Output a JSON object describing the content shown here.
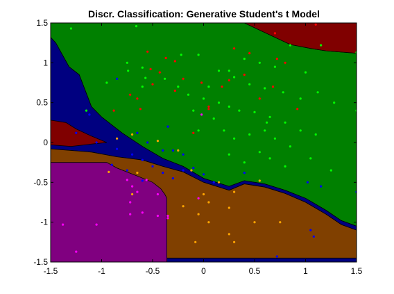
{
  "chart_data": {
    "type": "scatter",
    "title": "Discr. Classification: Generative Student's t Model",
    "xlabel": "",
    "ylabel": "",
    "xlim": [
      -1.5,
      1.5
    ],
    "ylim": [
      -1.5,
      1.5
    ],
    "x_ticks": [
      "-1.5",
      "-1",
      "-0.5",
      "0",
      "0.5",
      "1",
      "1.5"
    ],
    "y_ticks": [
      "-1.5",
      "-1",
      "-0.5",
      "0",
      "0.5",
      "1",
      "1.5"
    ],
    "x_tick_values": [
      -1.5,
      -1,
      -0.5,
      0,
      0.5,
      1,
      1.5
    ],
    "y_tick_values": [
      -1.5,
      -1,
      -0.5,
      0,
      0.5,
      1,
      1.5
    ],
    "grid": false,
    "legend": "none",
    "regions": [
      {
        "class": "green",
        "color": "#008000",
        "polygon": [
          [
            -1.5,
            1.5
          ],
          [
            -0.4,
            1.5
          ],
          [
            0.4,
            1.5
          ],
          [
            0.85,
            1.23
          ],
          [
            1.05,
            1.18
          ],
          [
            1.2,
            1.15
          ],
          [
            1.5,
            1.12
          ],
          [
            1.5,
            -1.05
          ],
          [
            1.35,
            -0.98
          ],
          [
            1.2,
            -0.85
          ],
          [
            1.0,
            -0.7
          ],
          [
            0.8,
            -0.6
          ],
          [
            0.6,
            -0.52
          ],
          [
            0.4,
            -0.48
          ],
          [
            0.25,
            -0.55
          ],
          [
            0.0,
            -0.45
          ],
          [
            -0.2,
            -0.3
          ],
          [
            -0.4,
            -0.2
          ],
          [
            -0.6,
            -0.05
          ],
          [
            -0.8,
            0.12
          ],
          [
            -1.0,
            0.32
          ],
          [
            -1.1,
            0.45
          ],
          [
            -1.22,
            0.85
          ],
          [
            -1.32,
            0.95
          ],
          [
            -1.45,
            1.25
          ],
          [
            -1.5,
            1.32
          ]
        ]
      },
      {
        "class": "darkred-top",
        "color": "#800000",
        "polygon": [
          [
            0.4,
            1.5
          ],
          [
            1.5,
            1.5
          ],
          [
            1.5,
            1.12
          ],
          [
            1.2,
            1.15
          ],
          [
            1.05,
            1.18
          ],
          [
            0.85,
            1.23
          ]
        ]
      },
      {
        "class": "navy",
        "color": "#000080",
        "polygon": [
          [
            -1.5,
            1.32
          ],
          [
            -1.45,
            1.25
          ],
          [
            -1.32,
            0.95
          ],
          [
            -1.22,
            0.85
          ],
          [
            -1.1,
            0.45
          ],
          [
            -1.0,
            0.32
          ],
          [
            -0.8,
            0.12
          ],
          [
            -0.6,
            -0.05
          ],
          [
            -0.4,
            -0.2
          ],
          [
            -0.2,
            -0.3
          ],
          [
            0.0,
            -0.45
          ],
          [
            0.25,
            -0.55
          ],
          [
            0.4,
            -0.48
          ],
          [
            0.6,
            -0.52
          ],
          [
            0.8,
            -0.6
          ],
          [
            1.0,
            -0.7
          ],
          [
            1.2,
            -0.85
          ],
          [
            1.35,
            -0.98
          ],
          [
            1.5,
            -1.05
          ],
          [
            1.5,
            -1.1
          ],
          [
            1.35,
            -1.03
          ],
          [
            1.2,
            -0.9
          ],
          [
            1.0,
            -0.75
          ],
          [
            0.8,
            -0.64
          ],
          [
            0.6,
            -0.56
          ],
          [
            0.4,
            -0.52
          ],
          [
            0.25,
            -0.6
          ],
          [
            0.0,
            -0.5
          ],
          [
            -0.2,
            -0.37
          ],
          [
            -0.4,
            -0.3
          ],
          [
            -0.6,
            -0.22
          ],
          [
            -0.85,
            -0.18
          ],
          [
            -1.1,
            -0.12
          ],
          [
            -1.3,
            -0.1
          ],
          [
            -1.5,
            -0.08
          ]
        ]
      },
      {
        "class": "darkred-left",
        "color": "#800000",
        "polygon": [
          [
            -1.5,
            0.28
          ],
          [
            -1.35,
            0.25
          ],
          [
            -1.25,
            0.17
          ],
          [
            -1.1,
            0.08
          ],
          [
            -0.95,
            0.0
          ],
          [
            -1.1,
            -0.02
          ],
          [
            -1.3,
            -0.05
          ],
          [
            -1.5,
            -0.03
          ]
        ]
      },
      {
        "class": "navy-strip",
        "color": "#000080",
        "polygon": [
          [
            -1.5,
            -1.45
          ],
          [
            1.5,
            -1.45
          ],
          [
            1.5,
            -1.5
          ],
          [
            -1.5,
            -1.5
          ]
        ]
      },
      {
        "class": "brown",
        "color": "#804000",
        "polygon": [
          [
            -1.5,
            -0.08
          ],
          [
            -1.3,
            -0.1
          ],
          [
            -1.1,
            -0.12
          ],
          [
            -0.85,
            -0.18
          ],
          [
            -0.6,
            -0.22
          ],
          [
            -0.4,
            -0.3
          ],
          [
            -0.2,
            -0.37
          ],
          [
            0.0,
            -0.5
          ],
          [
            0.25,
            -0.6
          ],
          [
            0.4,
            -0.52
          ],
          [
            0.6,
            -0.56
          ],
          [
            0.8,
            -0.64
          ],
          [
            1.0,
            -0.75
          ],
          [
            1.2,
            -0.9
          ],
          [
            1.35,
            -1.03
          ],
          [
            1.5,
            -1.1
          ],
          [
            1.5,
            -1.45
          ],
          [
            -1.5,
            -1.45
          ]
        ]
      },
      {
        "class": "purple",
        "color": "#800080",
        "polygon": [
          [
            -1.5,
            -0.25
          ],
          [
            -0.95,
            -0.25
          ],
          [
            -0.85,
            -0.32
          ],
          [
            -0.65,
            -0.42
          ],
          [
            -0.5,
            -0.5
          ],
          [
            -0.42,
            -0.58
          ],
          [
            -0.38,
            -0.65
          ],
          [
            -0.36,
            -0.7
          ],
          [
            -0.36,
            -1.5
          ],
          [
            -1.5,
            -1.5
          ]
        ]
      }
    ],
    "series": [
      {
        "color": "#00ff00",
        "points": [
          [
            -1.3,
            1.43
          ],
          [
            -0.66,
            1.46
          ],
          [
            -0.75,
            1.0
          ],
          [
            -0.74,
            0.9
          ],
          [
            -0.6,
            0.94
          ],
          [
            -0.57,
            0.81
          ],
          [
            -0.38,
            0.8
          ],
          [
            -0.22,
            1.1
          ],
          [
            -0.05,
            1.1
          ],
          [
            0.15,
            0.9
          ],
          [
            0.3,
            0.82
          ],
          [
            0.45,
            0.73
          ],
          [
            0.6,
            0.68
          ],
          [
            0.78,
            0.63
          ],
          [
            0.95,
            0.55
          ],
          [
            1.0,
            0.88
          ],
          [
            1.12,
            0.63
          ],
          [
            -0.25,
            0.7
          ],
          [
            -0.15,
            0.6
          ],
          [
            0.0,
            0.55
          ],
          [
            0.15,
            0.5
          ],
          [
            0.25,
            0.45
          ],
          [
            0.35,
            0.4
          ],
          [
            0.5,
            0.38
          ],
          [
            0.65,
            0.32
          ],
          [
            0.8,
            0.25
          ],
          [
            0.95,
            0.15
          ],
          [
            1.1,
            0.1
          ],
          [
            1.28,
            0.5
          ],
          [
            1.5,
            0.4
          ],
          [
            1.5,
            1.13
          ],
          [
            1.15,
            1.22
          ],
          [
            0.85,
            1.22
          ],
          [
            0.7,
            0.95
          ],
          [
            0.55,
            1.0
          ],
          [
            0.4,
            1.05
          ],
          [
            0.25,
            0.9
          ],
          [
            0.05,
            0.7
          ],
          [
            -0.1,
            0.4
          ],
          [
            0.1,
            0.3
          ],
          [
            0.2,
            0.15
          ],
          [
            0.3,
            0.05
          ],
          [
            0.45,
            0.1
          ],
          [
            0.6,
            0.15
          ],
          [
            0.7,
            0.05
          ],
          [
            0.85,
            -0.05
          ],
          [
            1.05,
            -0.2
          ],
          [
            1.25,
            -0.35
          ],
          [
            0.25,
            -0.15
          ],
          [
            0.4,
            -0.25
          ],
          [
            0.55,
            -0.12
          ],
          [
            0.65,
            -0.2
          ],
          [
            0.8,
            -0.3
          ],
          [
            0.62,
            0.25
          ],
          [
            -0.05,
            0.15
          ],
          [
            -0.95,
            0.75
          ],
          [
            -1.15,
            0.4
          ],
          [
            -0.6,
            0.7
          ]
        ]
      },
      {
        "color": "#ff0000",
        "points": [
          [
            -0.55,
            1.14
          ],
          [
            -0.37,
            1.06
          ],
          [
            -0.28,
            1.02
          ],
          [
            -0.43,
            0.88
          ],
          [
            -0.5,
            0.73
          ],
          [
            -0.2,
            0.8
          ],
          [
            -0.28,
            0.65
          ],
          [
            0.05,
            0.42
          ],
          [
            0.25,
            0.78
          ],
          [
            0.4,
            0.85
          ],
          [
            0.55,
            0.55
          ],
          [
            0.8,
            1.0
          ],
          [
            0.72,
            1.05
          ],
          [
            0.92,
            0.42
          ],
          [
            0.3,
            1.18
          ],
          [
            0.45,
            1.12
          ],
          [
            0.05,
            0.45
          ],
          [
            -0.02,
            0.75
          ],
          [
            0.18,
            0.7
          ],
          [
            -0.1,
            0.12
          ],
          [
            -0.62,
            0.42
          ],
          [
            -0.72,
            0.6
          ],
          [
            -0.52,
            0.92
          ],
          [
            0.68,
            0.7
          ],
          [
            1.1,
            1.48
          ],
          [
            0.7,
            1.37
          ],
          [
            -0.88,
            0.4
          ],
          [
            -0.65,
            0.55
          ]
        ]
      },
      {
        "color": "#0000ff",
        "points": [
          [
            -0.85,
            0.8
          ],
          [
            -1.12,
            0.35
          ],
          [
            -1.25,
            0.12
          ],
          [
            -1.05,
            0.0
          ],
          [
            -0.85,
            -0.08
          ],
          [
            -0.7,
            -0.15
          ],
          [
            -0.6,
            -0.22
          ],
          [
            -0.5,
            -0.3
          ],
          [
            -0.4,
            -0.38
          ],
          [
            -0.3,
            -0.45
          ],
          [
            -0.2,
            -0.35
          ],
          [
            -0.1,
            -0.32
          ],
          [
            0.0,
            -0.4
          ],
          [
            -0.65,
            0.12
          ],
          [
            -0.35,
            0.2
          ],
          [
            -0.4,
            -0.1
          ],
          [
            -0.2,
            -0.15
          ],
          [
            0.1,
            -0.5
          ],
          [
            0.4,
            -0.38
          ],
          [
            -0.55,
            0.0
          ],
          [
            -0.75,
            -0.35
          ],
          [
            -0.9,
            -0.28
          ],
          [
            1.02,
            -0.5
          ],
          [
            1.15,
            -0.55
          ],
          [
            1.5,
            -0.62
          ],
          [
            1.05,
            -1.1
          ],
          [
            1.08,
            -1.18
          ],
          [
            0.72,
            -1.43
          ],
          [
            -0.3,
            -0.1
          ],
          [
            -0.6,
            -0.48
          ]
        ]
      },
      {
        "color": "#ffa500",
        "points": [
          [
            -0.85,
            0.05
          ],
          [
            -0.7,
            0.1
          ],
          [
            -0.45,
            0.02
          ],
          [
            -0.25,
            -0.1
          ],
          [
            -0.93,
            -0.37
          ],
          [
            -0.65,
            -0.38
          ],
          [
            -0.12,
            -0.35
          ],
          [
            0.15,
            -0.5
          ],
          [
            0.3,
            -0.62
          ],
          [
            0.0,
            -0.65
          ],
          [
            -0.2,
            -0.8
          ],
          [
            -0.05,
            -0.9
          ],
          [
            0.05,
            -0.75
          ],
          [
            0.25,
            -0.82
          ],
          [
            0.05,
            -1.0
          ],
          [
            0.25,
            -1.15
          ],
          [
            0.5,
            -1.0
          ],
          [
            0.75,
            -1.0
          ],
          [
            0.3,
            -1.25
          ],
          [
            -0.08,
            -1.25
          ],
          [
            0.55,
            -0.48
          ],
          [
            -0.7,
            -0.65
          ]
        ]
      },
      {
        "color": "#ff00ff",
        "points": [
          [
            -1.38,
            -1.03
          ],
          [
            -1.25,
            -1.37
          ],
          [
            -1.05,
            -1.03
          ],
          [
            -0.75,
            -0.47
          ],
          [
            -0.65,
            -0.62
          ],
          [
            -0.56,
            -0.47
          ],
          [
            -0.72,
            -0.75
          ],
          [
            -0.72,
            -0.9
          ],
          [
            -0.6,
            -0.88
          ],
          [
            -0.45,
            -0.92
          ],
          [
            -0.35,
            -0.92
          ],
          [
            -0.35,
            -0.95
          ],
          [
            -0.45,
            -0.65
          ],
          [
            -0.7,
            -0.55
          ],
          [
            -0.05,
            -0.7
          ],
          [
            -0.02,
            0.35
          ]
        ]
      }
    ]
  }
}
